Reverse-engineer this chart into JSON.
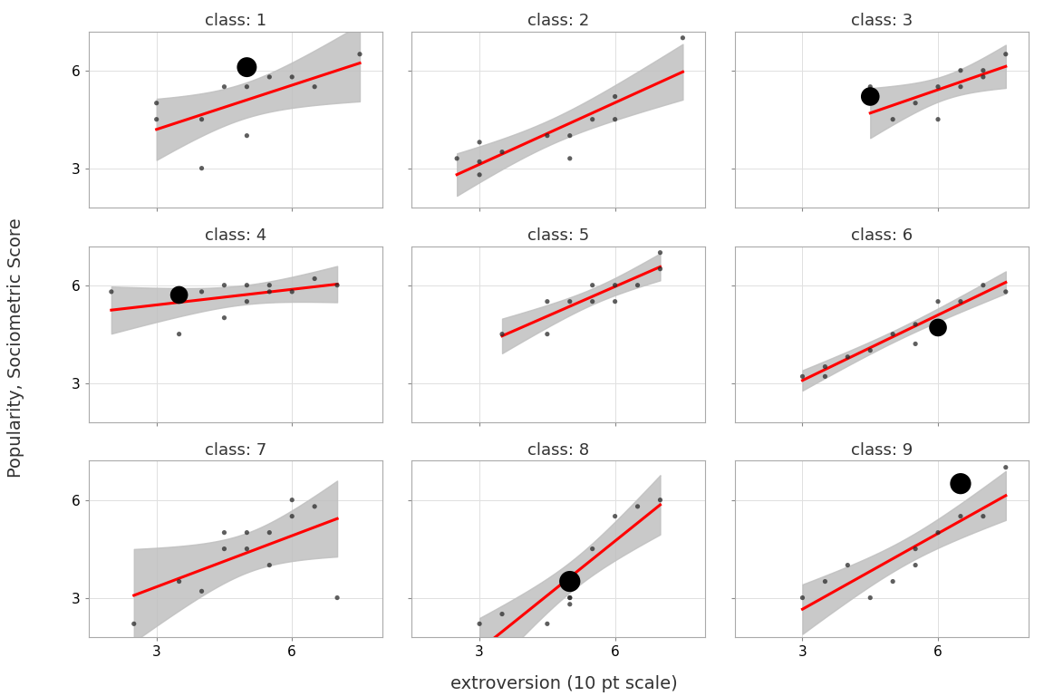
{
  "title": "",
  "xlabel": "extroversion (10 pt scale)",
  "ylabel": "Popularity, Sociometric Score",
  "xlim": [
    1.5,
    8.0
  ],
  "ylim": [
    1.8,
    7.2
  ],
  "xticks": [
    3,
    6
  ],
  "yticks": [
    3,
    6
  ],
  "background_color": "#ffffff",
  "panel_bg": "#ffffff",
  "grid_color": "#e0e0e0",
  "line_color": "#ff0000",
  "ci_color": "#c0c0c0",
  "point_color": "#2a2a2a",
  "point_alpha": 0.75,
  "point_size": 14,
  "classes": [
    1,
    2,
    3,
    4,
    5,
    6,
    7,
    8,
    9
  ],
  "class_data": {
    "1": {
      "x": [
        3.0,
        3.0,
        4.0,
        4.0,
        4.5,
        5.0,
        5.0,
        5.5,
        6.0,
        6.5,
        7.5
      ],
      "y": [
        5.0,
        4.5,
        4.5,
        3.0,
        5.5,
        5.5,
        4.0,
        5.8,
        5.8,
        5.5,
        6.5
      ],
      "highlight_x": 5.0,
      "highlight_y": 6.1,
      "highlight_size": 250
    },
    "2": {
      "x": [
        2.5,
        3.0,
        3.0,
        3.0,
        3.5,
        4.5,
        5.0,
        5.0,
        5.5,
        6.0,
        6.0,
        7.5
      ],
      "y": [
        3.3,
        3.2,
        3.8,
        2.8,
        3.5,
        4.0,
        4.0,
        3.3,
        4.5,
        5.2,
        4.5,
        7.0
      ],
      "highlight_x": null,
      "highlight_y": null,
      "highlight_size": null
    },
    "3": {
      "x": [
        4.5,
        5.0,
        5.5,
        6.0,
        6.0,
        6.5,
        6.5,
        7.0,
        7.0,
        7.5
      ],
      "y": [
        5.5,
        4.5,
        5.0,
        5.5,
        4.5,
        5.5,
        6.0,
        5.8,
        6.0,
        6.5
      ],
      "highlight_x": 4.5,
      "highlight_y": 5.2,
      "highlight_size": 220
    },
    "4": {
      "x": [
        2.0,
        3.5,
        4.0,
        4.5,
        4.5,
        5.0,
        5.0,
        5.5,
        5.5,
        6.0,
        6.5,
        7.0
      ],
      "y": [
        5.8,
        4.5,
        5.8,
        5.0,
        6.0,
        6.0,
        5.5,
        5.8,
        6.0,
        5.8,
        6.2,
        6.0
      ],
      "highlight_x": 3.5,
      "highlight_y": 5.7,
      "highlight_size": 200
    },
    "5": {
      "x": [
        3.5,
        4.5,
        4.5,
        5.0,
        5.5,
        5.5,
        6.0,
        6.0,
        6.5,
        7.0,
        7.0
      ],
      "y": [
        4.5,
        5.5,
        4.5,
        5.5,
        6.0,
        5.5,
        5.5,
        6.0,
        6.0,
        7.0,
        6.5
      ],
      "highlight_x": null,
      "highlight_y": null,
      "highlight_size": null
    },
    "6": {
      "x": [
        3.0,
        3.5,
        3.5,
        4.0,
        4.5,
        5.0,
        5.5,
        5.5,
        6.0,
        6.5,
        7.0,
        7.5
      ],
      "y": [
        3.2,
        3.5,
        3.2,
        3.8,
        4.0,
        4.5,
        4.8,
        4.2,
        5.5,
        5.5,
        6.0,
        5.8
      ],
      "highlight_x": 6.0,
      "highlight_y": 4.7,
      "highlight_size": 200
    },
    "7": {
      "x": [
        2.5,
        3.5,
        4.0,
        4.5,
        4.5,
        5.0,
        5.0,
        5.5,
        5.5,
        6.0,
        6.0,
        6.5,
        7.0
      ],
      "y": [
        2.2,
        3.5,
        3.2,
        4.5,
        5.0,
        4.5,
        5.0,
        5.0,
        4.0,
        5.5,
        6.0,
        5.8,
        3.0
      ],
      "highlight_x": null,
      "highlight_y": null,
      "highlight_size": null
    },
    "8": {
      "x": [
        3.0,
        3.5,
        4.5,
        5.0,
        5.0,
        5.0,
        5.0,
        5.5,
        6.0,
        6.5,
        7.0
      ],
      "y": [
        2.2,
        2.5,
        2.2,
        3.0,
        3.5,
        2.8,
        3.0,
        4.5,
        5.5,
        5.8,
        6.0
      ],
      "highlight_x": 5.0,
      "highlight_y": 3.5,
      "highlight_size": 280
    },
    "9": {
      "x": [
        3.0,
        3.5,
        4.0,
        4.5,
        5.0,
        5.5,
        5.5,
        6.0,
        6.5,
        7.0,
        7.5
      ],
      "y": [
        3.0,
        3.5,
        4.0,
        3.0,
        3.5,
        4.0,
        4.5,
        5.0,
        5.5,
        5.5,
        7.0
      ],
      "highlight_x": 6.5,
      "highlight_y": 6.5,
      "highlight_size": 280
    }
  },
  "nrows": 3,
  "ncols": 3,
  "title_fontsize": 13,
  "axis_fontsize": 11,
  "label_fontsize": 13
}
